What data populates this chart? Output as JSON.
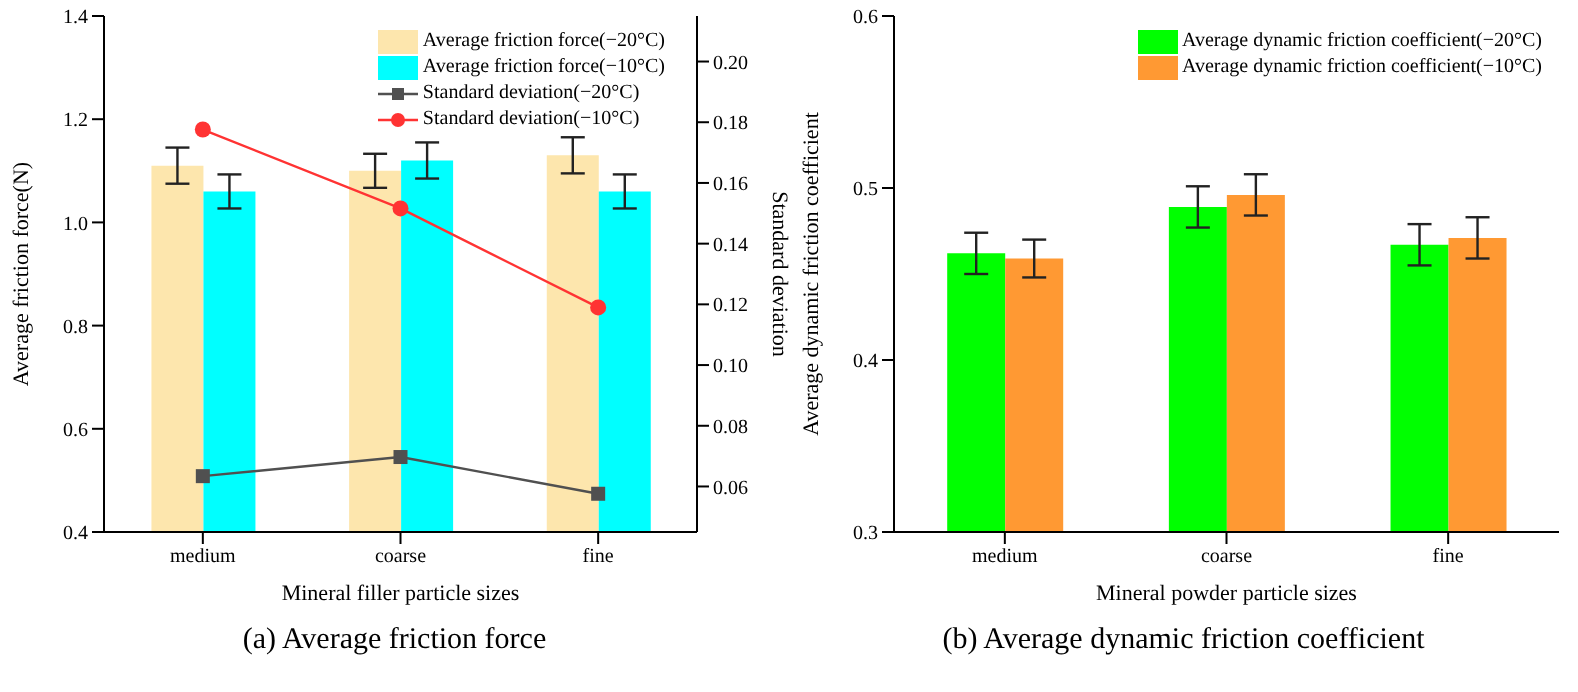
{
  "chart_data": [
    {
      "type": "bar",
      "title": "(a) Average friction force",
      "xlabel": "Mineral filler particle sizes",
      "ylabel": "Average friction force(N)",
      "y2label": "Standard deviation",
      "categories": [
        "medium",
        "coarse",
        "fine"
      ],
      "series": [
        {
          "name": "Average friction force(−20°C)",
          "color": "#fde6ad",
          "values": [
            1.11,
            1.1,
            1.13
          ],
          "errors": [
            0.035,
            0.033,
            0.035
          ]
        },
        {
          "name": "Average friction force(−10°C)",
          "color": "#00ffff",
          "values": [
            1.06,
            1.12,
            1.06
          ],
          "errors": [
            0.033,
            0.035,
            0.033
          ]
        },
        {
          "name": "Standard deviation(−20°C)",
          "type": "line",
          "axis": "y2",
          "marker": "square",
          "color": "#505050",
          "values": [
            0.0634,
            0.0697,
            0.0576
          ]
        },
        {
          "name": "Standard deviation(−10°C)",
          "type": "line",
          "axis": "y2",
          "marker": "circle",
          "color": "#ff3333",
          "values": [
            0.1776,
            0.1516,
            0.119
          ]
        }
      ],
      "ylim": [
        0.4,
        1.4
      ],
      "yticks": [
        0.4,
        0.6,
        0.8,
        {
          "value": 1,
          "label": "1.0"
        },
        1.2,
        1.4
      ],
      "y2lim": [
        0.045,
        0.215
      ],
      "y2ticks": [
        0.06,
        0.08,
        {
          "value": 0.1,
          "label": "0.10"
        },
        0.12,
        0.14,
        0.16,
        0.18,
        {
          "value": 0.2,
          "label": "0.20"
        }
      ],
      "legend": "top right",
      "grid": false
    },
    {
      "type": "bar",
      "title": "(b) Average dynamic friction coefficient",
      "xlabel": "Mineral powder particle sizes",
      "ylabel": "Average dynamic friction coefficient",
      "categories": [
        "medium",
        "coarse",
        "fine"
      ],
      "series": [
        {
          "name": "Average dynamic friction coefficient(−20°C)",
          "color": "#00ff00",
          "values": [
            0.462,
            0.489,
            0.467
          ],
          "errors": [
            0.012,
            0.012,
            0.012
          ]
        },
        {
          "name": "Average dynamic friction coefficient(−10°C)",
          "color": "#ff9933",
          "values": [
            0.459,
            0.496,
            0.471
          ],
          "errors": [
            0.011,
            0.012,
            0.012
          ]
        }
      ],
      "ylim": [
        0.3,
        0.6
      ],
      "yticks": [
        0.3,
        0.4,
        0.5,
        0.6
      ],
      "legend": "top right",
      "grid": false
    }
  ]
}
